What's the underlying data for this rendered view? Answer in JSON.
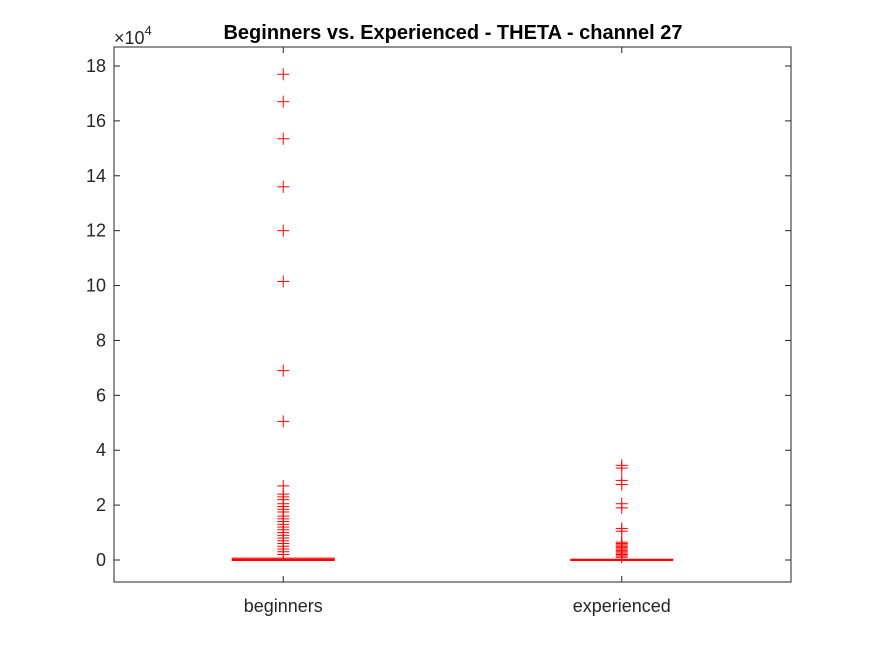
{
  "chart_data": {
    "type": "box",
    "title": "Beginners vs. Experienced - THETA - channel 27",
    "y_multiplier": {
      "base": "×10",
      "exponent": "4"
    },
    "categories": [
      "beginners",
      "experienced"
    ],
    "ylim": [
      -0.8,
      18.6
    ],
    "yticks": [
      0,
      2,
      4,
      6,
      8,
      10,
      12,
      14,
      16,
      18
    ],
    "ytick_labels": [
      "0",
      "2",
      "4",
      "6",
      "8",
      "10",
      "12",
      "14",
      "16",
      "18"
    ],
    "units_note": "values in ×10^4",
    "grid": false,
    "legend": "none",
    "colors": {
      "box": "#ff0000",
      "axes": "#262626",
      "median": "#ff0000"
    },
    "series": [
      {
        "box": {
          "q1": 0.0,
          "median": 0.02,
          "q3": 0.05,
          "whisker_low": 0.0,
          "whisker_high": 0.1
        },
        "outliers": [
          17.7,
          16.7,
          15.35,
          13.6,
          12.0,
          10.15,
          6.9,
          5.05,
          2.7,
          2.4,
          2.3,
          2.2,
          2.05,
          1.95,
          1.85,
          1.75,
          1.6,
          1.5,
          1.4,
          1.3,
          1.2,
          1.1,
          1.0,
          0.9,
          0.8,
          0.7,
          0.6,
          0.5,
          0.4,
          0.3,
          0.2
        ]
      },
      {
        "box": {
          "q1": 0.0,
          "median": 0.0,
          "q3": 0.01,
          "whisker_low": 0.0,
          "whisker_high": 0.02
        },
        "outliers": [
          3.45,
          3.35,
          2.9,
          2.75,
          2.05,
          1.9,
          1.15,
          1.05,
          0.65,
          0.6,
          0.55,
          0.5,
          0.45,
          0.4,
          0.35,
          0.3,
          0.25,
          0.2,
          0.15,
          0.1
        ]
      }
    ]
  }
}
